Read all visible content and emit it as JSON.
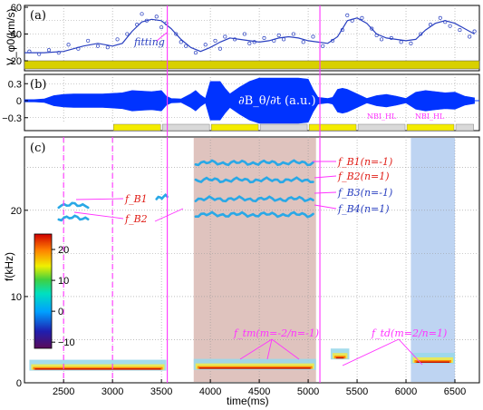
{
  "chart_data": [
    {
      "id": "a",
      "type": "scatter",
      "panel_label": "(a)",
      "ylabel": "V_φ0(km/s)",
      "ylim": [
        20,
        60
      ],
      "yticks": [
        20,
        40,
        60
      ],
      "xlim": [
        2100,
        6750
      ],
      "annotation": "fitting",
      "bar_color": "#d8d000",
      "series": [
        {
          "type": "line",
          "x": [
            2100,
            2300,
            2500,
            2700,
            2850,
            3000,
            3100,
            3200,
            3300,
            3400,
            3500,
            3600,
            3700,
            3800,
            3900,
            4000,
            4100,
            4200,
            4300,
            4400,
            4500,
            4600,
            4700,
            4800,
            4900,
            5000,
            5100,
            5200,
            5300,
            5400,
            5500,
            5600,
            5700,
            5800,
            5900,
            6000,
            6100,
            6200,
            6300,
            6400,
            6500,
            6600,
            6700
          ],
          "y": [
            26,
            26,
            27,
            31,
            33,
            31,
            33,
            42,
            49,
            51,
            50,
            44,
            36,
            30,
            27,
            30,
            34,
            37,
            36,
            35,
            34,
            35,
            37,
            38,
            37,
            35,
            34,
            33,
            38,
            50,
            52,
            48,
            40,
            37,
            36,
            35,
            36,
            43,
            48,
            50,
            48,
            44,
            40
          ]
        },
        {
          "type": "points",
          "x": [
            2150,
            2250,
            2350,
            2450,
            2550,
            2650,
            2750,
            2850,
            2950,
            3050,
            3150,
            3250,
            3300,
            3350,
            3450,
            3500,
            3550,
            3650,
            3700,
            3750,
            3850,
            3950,
            4050,
            4100,
            4150,
            4250,
            4350,
            4400,
            4450,
            4550,
            4650,
            4700,
            4750,
            4850,
            4950,
            5050,
            5150,
            5250,
            5350,
            5400,
            5450,
            5550,
            5650,
            5700,
            5750,
            5850,
            5950,
            6050,
            6150,
            6250,
            6350,
            6400,
            6450,
            6550,
            6650,
            6700
          ],
          "y": [
            27,
            25,
            28,
            26,
            32,
            29,
            35,
            31,
            30,
            36,
            40,
            47,
            55,
            50,
            53,
            45,
            48,
            40,
            34,
            31,
            26,
            32,
            35,
            29,
            38,
            36,
            40,
            33,
            34,
            37,
            35,
            39,
            36,
            40,
            34,
            38,
            31,
            35,
            43,
            54,
            50,
            52,
            44,
            39,
            36,
            37,
            34,
            33,
            40,
            47,
            52,
            49,
            46,
            43,
            38,
            42
          ]
        }
      ]
    },
    {
      "id": "b",
      "type": "area",
      "panel_label": "(b)",
      "title": "∂B_θ/∂t (a.u.)",
      "ylim": [
        -0.45,
        0.38
      ],
      "yticks": [
        -0.3,
        0,
        0.3
      ],
      "xlim": [
        2100,
        6750
      ],
      "series": [
        {
          "name": "envelope",
          "x": [
            2100,
            2200,
            2300,
            2400,
            2500,
            2600,
            2700,
            2800,
            2900,
            3000,
            3100,
            3200,
            3300,
            3400,
            3500,
            3550,
            3600,
            3700,
            3800,
            3850,
            3900,
            3950,
            4000,
            4050,
            4100,
            4150,
            4200,
            4300,
            4400,
            4500,
            4600,
            4700,
            4800,
            4900,
            5000,
            5050,
            5100,
            5200,
            5250,
            5300,
            5350,
            5400,
            5500,
            5600,
            5700,
            5800,
            5900,
            6000,
            6100,
            6200,
            6300,
            6400,
            6500,
            6600,
            6700
          ],
          "amplitude": [
            0.02,
            0.02,
            0.03,
            0.09,
            0.11,
            0.12,
            0.12,
            0.12,
            0.12,
            0.13,
            0.14,
            0.18,
            0.17,
            0.16,
            0.18,
            0.08,
            0.04,
            0.03,
            0.12,
            0.18,
            0.1,
            0.04,
            0.34,
            0.34,
            0.34,
            0.22,
            0.12,
            0.24,
            0.34,
            0.4,
            0.4,
            0.4,
            0.4,
            0.4,
            0.38,
            0.2,
            0.06,
            0.04,
            0.06,
            0.2,
            0.22,
            0.2,
            0.12,
            0.04,
            0.09,
            0.11,
            0.08,
            0.04,
            0.15,
            0.18,
            0.16,
            0.14,
            0.15,
            0.08,
            0.05
          ]
        }
      ],
      "nbi_labels": [
        "NBI_HL",
        "NBI_HL"
      ],
      "nbi_bars": [
        {
          "x0": 3000,
          "x1": 3500,
          "color": "#f4ec00"
        },
        {
          "x0": 3500,
          "x1": 4000,
          "color": "#d9d9d9"
        },
        {
          "x0": 4000,
          "x1": 4500,
          "color": "#f4ec00"
        },
        {
          "x0": 4500,
          "x1": 5000,
          "color": "#d9d9d9"
        },
        {
          "x0": 5000,
          "x1": 5500,
          "color": "#f4ec00"
        },
        {
          "x0": 5500,
          "x1": 6000,
          "color": "#d9d9d9"
        },
        {
          "x0": 6000,
          "x1": 6500,
          "color": "#f4ec00"
        },
        {
          "x0": 6500,
          "x1": 6700,
          "color": "#d9d9d9"
        }
      ]
    },
    {
      "id": "c",
      "type": "heatmap",
      "panel_label": "(c)",
      "xlabel": "time(ms)",
      "ylabel": "f(kHz)",
      "xlim": [
        2100,
        6750
      ],
      "ylim": [
        0,
        28.5
      ],
      "xticks": [
        2500,
        3000,
        3500,
        4000,
        4500,
        5000,
        5500,
        6000,
        6500
      ],
      "yticks": [
        0,
        10,
        20
      ],
      "colorbar": {
        "ticks": [
          -10,
          0,
          10,
          20
        ],
        "range": [
          -12,
          25
        ]
      },
      "shaded_regions": [
        {
          "x0": 3830,
          "x1": 5080,
          "color": "#d9b9b3"
        },
        {
          "x0": 6050,
          "x1": 6500,
          "color": "#b3cdf0"
        }
      ],
      "mode_bands": [
        {
          "x0": 2450,
          "x1": 2750,
          "f": 20.6,
          "color": "#29a8e6"
        },
        {
          "x0": 2450,
          "x1": 2750,
          "f": 19.1,
          "color": "#29a8e6"
        },
        {
          "x0": 3450,
          "x1": 3560,
          "f": 21.5,
          "color": "#29a8e6"
        },
        {
          "x0": 3850,
          "x1": 5050,
          "f": 25.5,
          "color": "#29a8e6"
        },
        {
          "x0": 3850,
          "x1": 5050,
          "f": 23.5,
          "color": "#29a8e6"
        },
        {
          "x0": 3850,
          "x1": 5050,
          "f": 21.3,
          "color": "#29a8e6"
        },
        {
          "x0": 3850,
          "x1": 5050,
          "f": 19.5,
          "color": "#29a8e6"
        }
      ],
      "low_freq_bands": [
        {
          "x0": 2150,
          "x1": 3550,
          "f": 1.2
        },
        {
          "x0": 3830,
          "x1": 5080,
          "f": 1.3
        },
        {
          "x0": 5230,
          "x1": 5420,
          "f": 2.5
        },
        {
          "x0": 6050,
          "x1": 6500,
          "f": 2.0
        }
      ],
      "annotations": [
        "f_B1(n=-1)",
        "f_B2(n=1)",
        "f_B3(n=-1)",
        "f_B4(n=1)",
        "f_B1",
        "f_B2",
        "f_tm(m=-2/n=-1)",
        "f_td(m=2/n=1)"
      ],
      "vertical_lines": [
        {
          "x": 2500,
          "style": "dashed",
          "color": "#ff33ff"
        },
        {
          "x": 3000,
          "style": "dashed",
          "color": "#ff33ff"
        },
        {
          "x": 3560,
          "style": "solid",
          "color": "#ff33ff"
        },
        {
          "x": 5120,
          "style": "solid",
          "color": "#ff33ff"
        }
      ]
    }
  ]
}
